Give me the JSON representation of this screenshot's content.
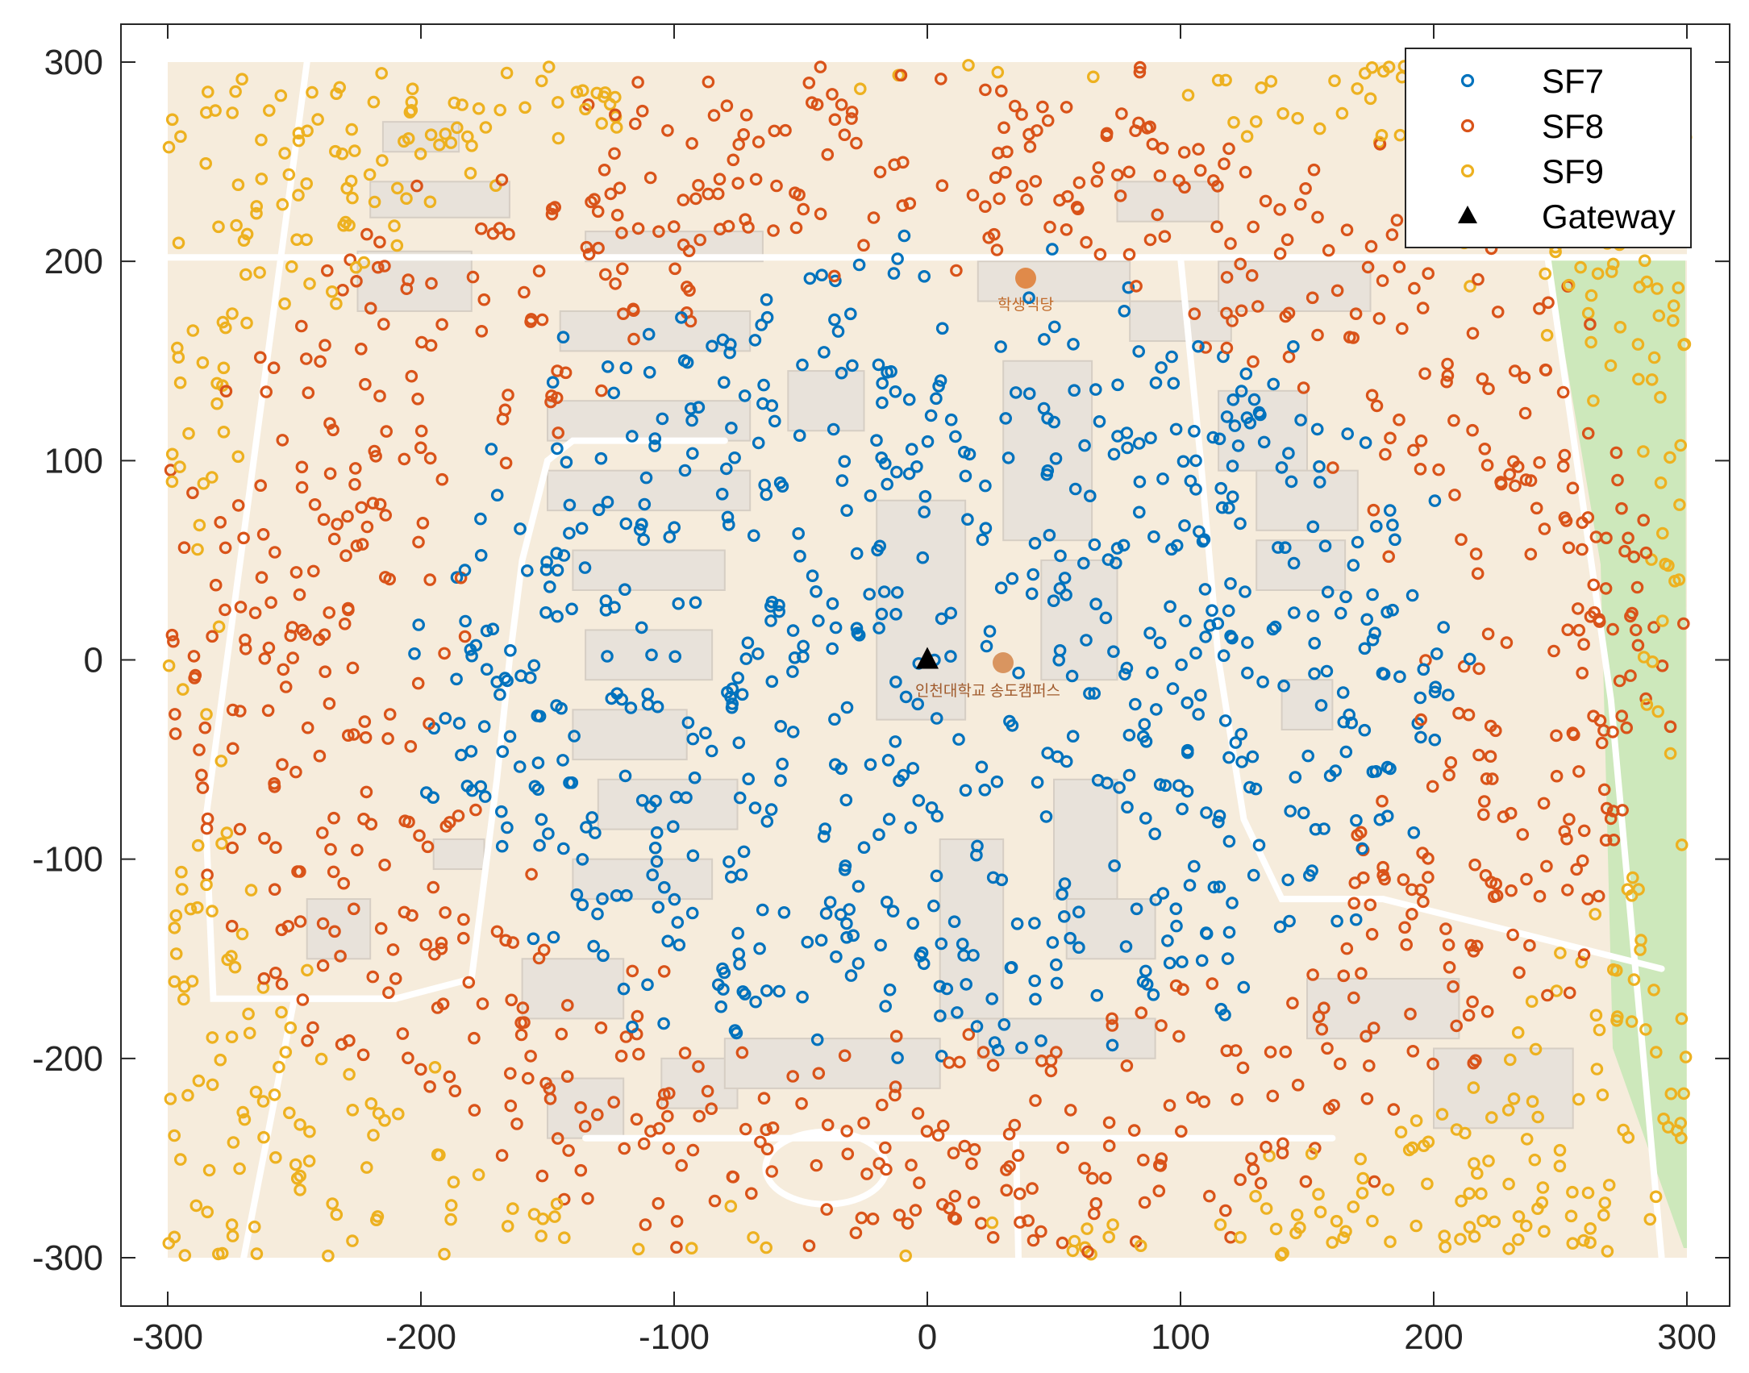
{
  "chart_data": {
    "type": "scatter",
    "title": "",
    "xlabel": "",
    "ylabel": "",
    "xlim": [
      -300,
      300
    ],
    "ylim": [
      -300,
      300
    ],
    "x_ticks": [
      -300,
      -200,
      -100,
      0,
      100,
      200,
      300
    ],
    "y_ticks": [
      -300,
      -200,
      -100,
      0,
      100,
      200,
      300
    ],
    "grid": false,
    "legend_position": "top-right",
    "background": "campus map (Incheon National University Songdo Campus)",
    "map_labels": [
      "인천대학교 송도캠퍼스",
      "학생식당"
    ],
    "sf7_max_radius": 200,
    "sf8_max_radius": 300,
    "series": [
      {
        "name": "SF7",
        "marker": "circle-open",
        "color": "#0072BD",
        "region": "radius below ~200 m",
        "approx_count": 1150
      },
      {
        "name": "SF8",
        "marker": "circle-open",
        "color": "#D95319",
        "region": "radius ~200–300 m",
        "approx_count": 620
      },
      {
        "name": "SF9",
        "marker": "circle-open",
        "color": "#EDB120",
        "region": "radius above ~300 m (corners)",
        "approx_count": 250
      },
      {
        "name": "Gateway",
        "marker": "triangle-filled",
        "color": "#000000",
        "points": [
          [
            0,
            0
          ]
        ]
      }
    ]
  }
}
